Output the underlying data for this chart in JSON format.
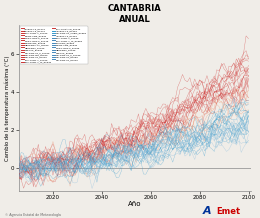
{
  "title": "CANTABRIA",
  "subtitle": "ANUAL",
  "xlabel": "Año",
  "ylabel": "Cambio de la temperatura máxima (°C)",
  "xlim": [
    2006,
    2101
  ],
  "ylim": [
    -1.2,
    7.5
  ],
  "yticks": [
    0,
    2,
    4,
    6
  ],
  "xticks": [
    2020,
    2040,
    2060,
    2080,
    2100
  ],
  "x_start": 2006,
  "x_end": 2100,
  "red_color": "#cc2222",
  "blue_color": "#3399cc",
  "light_blue_color": "#88bbdd",
  "salmon_color": "#ee9977",
  "background_color": "#f0ede8",
  "plot_bg_color": "#f0ede8",
  "seed": 17,
  "legend_entries": [
    [
      "ACCESS1-0_RCP45",
      "#cc3333",
      "ACCESS1-0_RCP85",
      "#3399cc"
    ],
    [
      "ACCESS1-3_RCP45",
      "#cc3333",
      "MPI-ESM-LR_CHEM_RCP85",
      "#3399cc"
    ],
    [
      "BCC-CSM1.1_RCP45",
      "#cc3333",
      "ACCESS1-0_RCP85",
      "#4488bb"
    ],
    [
      "CNRM-CM5_RCP45",
      "#cc3333",
      "BCC-CSM1.1_RCP85",
      "#4488bb"
    ],
    [
      "CSIRO-MK3.6_RCP45",
      "#cc3333",
      "BCC-CSM1.1_m_RCP85",
      "#4488bb"
    ],
    [
      "CSIRO-MK3.6_RCP45",
      "#cc3333",
      "BNUESM_RCP85",
      "#4488bb"
    ],
    [
      "CNRMCM5_RCP45",
      "#cc3333",
      "CNRM-CM5_RCP45",
      "#4488bb"
    ],
    [
      "HadGEM2-CC_RCP45",
      "#cc3333",
      "CSIRO-MK3.6_RCP85",
      "#4488bb"
    ],
    [
      "HadGEM2_RCP45",
      "#cc3333",
      "HadGEM2_RCP85",
      "#4488bb"
    ],
    [
      "MIROC5_RCP45",
      "#cc3333",
      "MIROC5_RCP85",
      "#4488bb"
    ],
    [
      "MPI-ESM-LR_P_RCP45",
      "#cc3333",
      "MPI-ESM-LR_P_RCP85",
      "#4488bb"
    ],
    [
      "MPI-ESM-MR_RCP45",
      "#cc3333",
      "MPI-ESM-LR_RCP85",
      "#4488bb"
    ],
    [
      "MPI-ESM-LR_RCP45",
      "#cc3333",
      "MPI-ESM-LR_RCP45",
      "#4488bb"
    ],
    [
      "BCC-CSM1.1_RCP45",
      "#cc3333",
      null,
      null
    ],
    [
      "BCC-CSM1.1_m_RCP45",
      "#cc3333",
      null,
      null
    ],
    [
      "IPSL-CM5A-LR_RCP45",
      "#cc3333",
      null,
      null
    ]
  ]
}
